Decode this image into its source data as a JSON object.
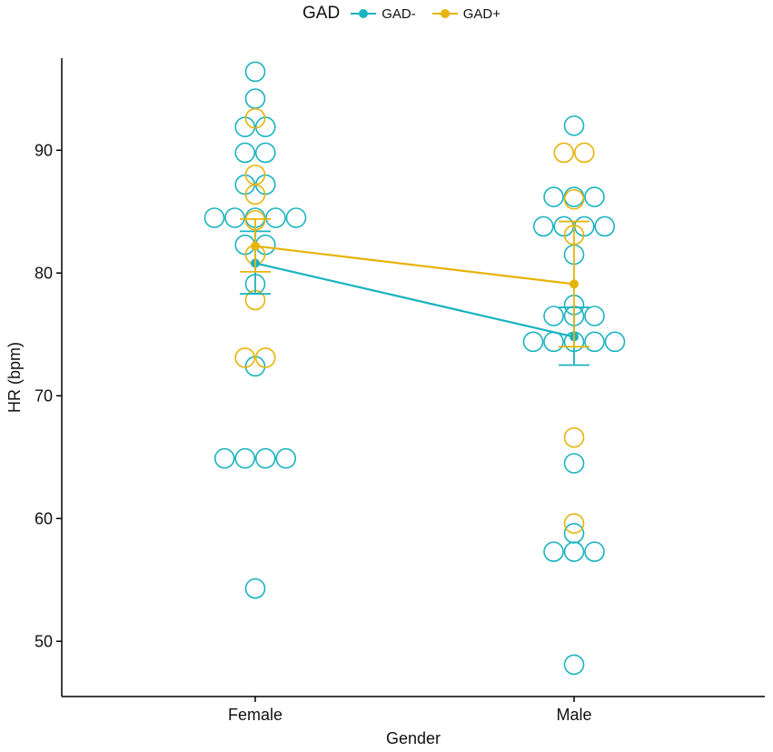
{
  "chart_data": {
    "type": "scatter",
    "title": "",
    "xlabel": "Gender",
    "ylabel": "HR (bpm)",
    "categories": [
      "Female",
      "Male"
    ],
    "ylim": [
      45.5,
      97.5
    ],
    "yticks": [
      50,
      60,
      70,
      80,
      90
    ],
    "legend": {
      "title": "GAD",
      "position": "top",
      "entries": [
        {
          "name": "GAD-",
          "color": "#1bb3c0"
        },
        {
          "name": "GAD+",
          "color": "#e6b40a"
        }
      ]
    },
    "series": [
      {
        "name": "GAD-",
        "color": "#1bb3c0",
        "points": [
          {
            "category": "Female",
            "values": [
              96.4,
              94.2,
              91.9,
              91.9,
              89.8,
              89.8,
              87.2,
              87.2,
              84.5,
              84.5,
              84.5,
              84.5,
              84.5,
              82.3,
              82.3,
              79.1,
              72.4,
              64.9,
              64.9,
              64.9,
              64.9,
              54.3
            ]
          },
          {
            "category": "Male",
            "values": [
              92.0,
              86.2,
              86.2,
              86.2,
              83.8,
              83.8,
              83.8,
              83.8,
              81.5,
              77.4,
              76.5,
              76.5,
              76.5,
              74.4,
              74.4,
              74.4,
              74.4,
              74.4,
              64.5,
              58.8,
              57.3,
              57.3,
              57.3,
              48.1
            ]
          }
        ],
        "means": [
          80.8,
          74.8
        ],
        "error_low": [
          78.3,
          72.5
        ],
        "error_high": [
          83.4,
          77.2
        ]
      },
      {
        "name": "GAD+",
        "color": "#e6b40a",
        "points": [
          {
            "category": "Female",
            "values": [
              92.6,
              88.0,
              86.4,
              84.3,
              81.5,
              77.8,
              73.1,
              73.1
            ]
          },
          {
            "category": "Male",
            "values": [
              89.8,
              89.8,
              86.0,
              83.1,
              66.6,
              59.6
            ]
          }
        ],
        "means": [
          82.2,
          79.1
        ],
        "error_low": [
          80.1,
          74.0
        ],
        "error_high": [
          84.4,
          84.2
        ]
      }
    ]
  }
}
